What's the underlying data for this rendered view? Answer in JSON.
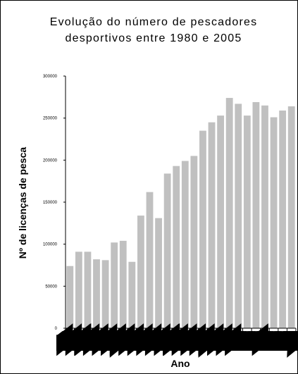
{
  "chart_data": {
    "type": "bar",
    "title": [
      "Evolução do número de pescadores",
      "desportivos entre 1980 e 2005"
    ],
    "xlabel": "Ano",
    "ylabel": "Nº de licenças de pesca",
    "ylim": [
      0,
      300000
    ],
    "yticks": [
      "0",
      "50000",
      "100000",
      "150000",
      "200000",
      "250000",
      "300000"
    ],
    "categories": [
      "1980",
      "1981",
      "1982",
      "1983",
      "1984",
      "1985",
      "1986",
      "1987",
      "1988",
      "1989",
      "1990",
      "1991",
      "1992",
      "1993",
      "1994",
      "1995",
      "1996",
      "1997",
      "1998",
      "1999",
      "2000",
      "2001",
      "2002",
      "2003",
      "2004",
      "2005"
    ],
    "values": [
      74000,
      91000,
      91000,
      82000,
      81000,
      102000,
      104000,
      79000,
      134000,
      162000,
      131000,
      184000,
      193000,
      199000,
      205000,
      235000,
      245000,
      253000,
      274000,
      267000,
      253000,
      269000,
      265000,
      251000,
      259000,
      264000
    ],
    "bar_color": "#c0c0c0",
    "grid": false
  }
}
